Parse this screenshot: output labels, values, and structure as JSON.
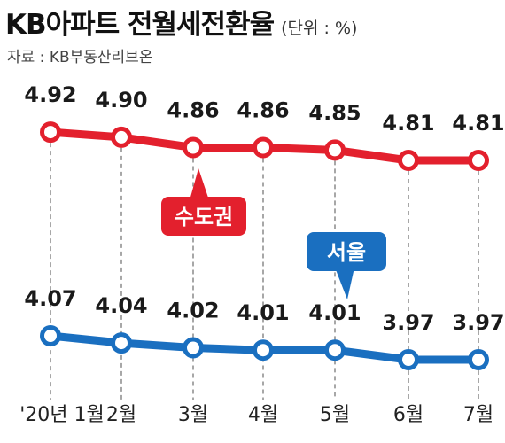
{
  "header": {
    "title": "KB아파트 전월세전환율",
    "unit": "(단위 : %)",
    "source": "자료 : KB부동산리브온"
  },
  "colors": {
    "capital": "#e3202d",
    "seoul": "#1a6fc0",
    "grid": "#8a8a8a"
  },
  "chart_data": {
    "type": "line",
    "categories": [
      "'20년 1월",
      "2월",
      "3월",
      "4월",
      "5월",
      "6월",
      "7월"
    ],
    "series": [
      {
        "name": "수도권",
        "values": [
          4.92,
          4.9,
          4.86,
          4.86,
          4.85,
          4.81,
          4.81
        ],
        "labels": [
          "4.92",
          "4.90",
          "4.86",
          "4.86",
          "4.85",
          "4.81",
          "4.81"
        ]
      },
      {
        "name": "서울",
        "values": [
          4.07,
          4.04,
          4.02,
          4.01,
          4.01,
          3.97,
          3.97
        ],
        "labels": [
          "4.07",
          "4.04",
          "4.02",
          "4.01",
          "4.01",
          "3.97",
          "3.97"
        ]
      }
    ],
    "grid": "vertical-dashed"
  }
}
